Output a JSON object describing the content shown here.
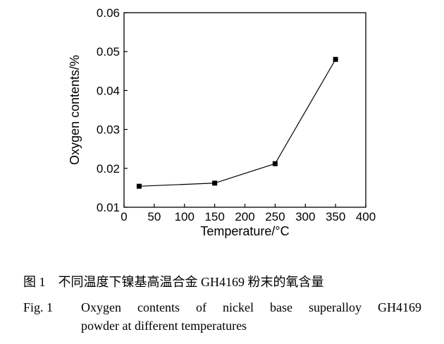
{
  "chart_data": {
    "type": "line",
    "title": "",
    "xlabel": "Temperature/°C",
    "ylabel": "Oxygen contents/%",
    "xlim": [
      0,
      400
    ],
    "ylim": [
      0.01,
      0.06
    ],
    "xticks": [
      "0",
      "50",
      "100",
      "150",
      "200",
      "250",
      "300",
      "350",
      "400"
    ],
    "yticks": [
      "0.01",
      "0.02",
      "0.03",
      "0.04",
      "0.05",
      "0.06"
    ],
    "grid": false,
    "marker": "square",
    "color": "#000000",
    "x": [
      25,
      150,
      250,
      350
    ],
    "y": [
      0.0154,
      0.0162,
      0.0212,
      0.048
    ]
  },
  "caption": {
    "cn": "图 1　不同温度下镍基高温合金 GH4169 粉末的氧含量",
    "en_label": "Fig. 1",
    "en_line1": "Oxygen contents of nickel base superalloy GH4169",
    "en_line2": "powder at different temperatures"
  }
}
